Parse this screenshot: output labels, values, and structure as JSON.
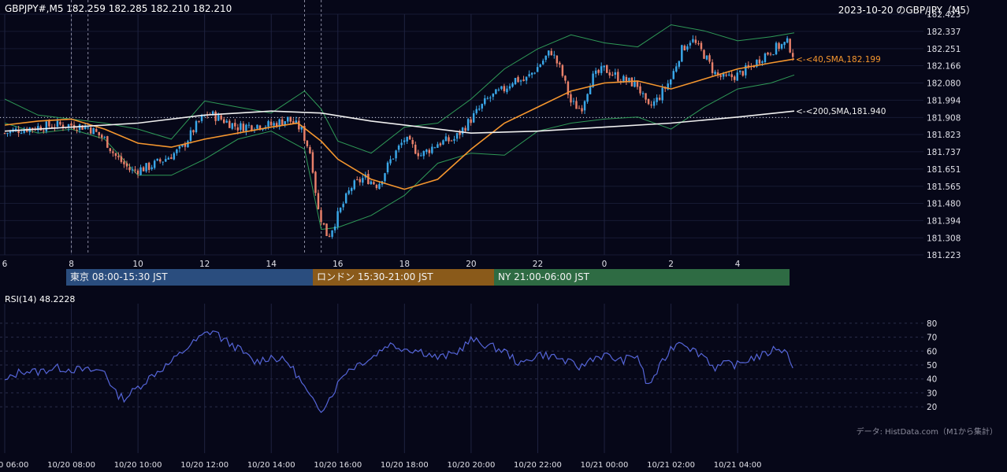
{
  "header": {
    "symbol_ohlc": "GBPJPY#,M5 182.259 182.285 182.210 182.210",
    "title": "2023-10-20 のGBP/JPY（M5）"
  },
  "sessions": [
    {
      "label": "東京 08:00-15:30 JST",
      "color": "#2a4d7e"
    },
    {
      "label": "ロンドン 15:30-21:00 JST",
      "color": "#8a5a1a"
    },
    {
      "label": "NY 21:00-06:00 JST",
      "color": "#2e6b43"
    }
  ],
  "rsi": {
    "label": "RSI(14) 48.2228"
  },
  "source": "データ: HistData.com（M1から集計）",
  "chart_data": [
    {
      "type": "candlestick",
      "title": "GBPJPY#,M5",
      "ylim": [
        181.223,
        182.423
      ],
      "y_ticks": [
        "182.423",
        "182.337",
        "182.251",
        "182.166",
        "182.080",
        "181.994",
        "181.908",
        "181.823",
        "181.737",
        "181.651",
        "181.565",
        "181.480",
        "181.394",
        "181.308",
        "181.223"
      ],
      "x_ticks": [
        "6",
        "8",
        "10",
        "12",
        "14",
        "16",
        "18",
        "20",
        "22",
        "0",
        "2",
        "4"
      ],
      "x_tick_hours": [
        6,
        8,
        10,
        12,
        14,
        16,
        18,
        20,
        22,
        24,
        26,
        28
      ],
      "x_range_hours": [
        6,
        29.7
      ],
      "reference_line_price": 181.908,
      "session_markers_hours": [
        8,
        8.5,
        15,
        15.5
      ],
      "colors": {
        "up": "#3aa7e8",
        "down": "#e8806a",
        "sma40": "#f5962e",
        "sma200": "#f0f0f0",
        "bands": "#2f9a57"
      },
      "series": [
        {
          "name": "SMA 40",
          "annotation": "<-<40,SMA,182.199",
          "points": [
            [
              6,
              181.87
            ],
            [
              7,
              181.89
            ],
            [
              8,
              181.9
            ],
            [
              9,
              181.85
            ],
            [
              10,
              181.78
            ],
            [
              11,
              181.76
            ],
            [
              12,
              181.8
            ],
            [
              13,
              181.83
            ],
            [
              14,
              181.86
            ],
            [
              14.8,
              181.88
            ],
            [
              15.5,
              181.79
            ],
            [
              16,
              181.7
            ],
            [
              17,
              181.6
            ],
            [
              18,
              181.55
            ],
            [
              19,
              181.6
            ],
            [
              20,
              181.75
            ],
            [
              21,
              181.88
            ],
            [
              22,
              181.96
            ],
            [
              23,
              182.04
            ],
            [
              24,
              182.08
            ],
            [
              25,
              182.09
            ],
            [
              26,
              182.05
            ],
            [
              27,
              182.1
            ],
            [
              28,
              182.15
            ],
            [
              29,
              182.18
            ],
            [
              29.7,
              182.199
            ]
          ]
        },
        {
          "name": "SMA 200",
          "annotation": "<-<200,SMA,181.940",
          "points": [
            [
              6,
              181.84
            ],
            [
              8,
              181.86
            ],
            [
              10,
              181.88
            ],
            [
              12,
              181.92
            ],
            [
              14,
              181.94
            ],
            [
              15.5,
              181.93
            ],
            [
              17,
              181.89
            ],
            [
              19,
              181.85
            ],
            [
              20,
              181.83
            ],
            [
              22,
              181.84
            ],
            [
              24,
              181.86
            ],
            [
              26,
              181.88
            ],
            [
              28,
              181.91
            ],
            [
              29.7,
              181.94
            ]
          ]
        },
        {
          "name": "Upper band",
          "points": [
            [
              6,
              182.0
            ],
            [
              7,
              181.92
            ],
            [
              8,
              181.9
            ],
            [
              9,
              181.88
            ],
            [
              10,
              181.85
            ],
            [
              11,
              181.8
            ],
            [
              12,
              181.99
            ],
            [
              13,
              181.96
            ],
            [
              14,
              181.93
            ],
            [
              15,
              182.04
            ],
            [
              15.5,
              181.95
            ],
            [
              16,
              181.79
            ],
            [
              17,
              181.73
            ],
            [
              18,
              181.86
            ],
            [
              19,
              181.88
            ],
            [
              20,
              182.0
            ],
            [
              21,
              182.15
            ],
            [
              22,
              182.25
            ],
            [
              23,
              182.32
            ],
            [
              24,
              182.28
            ],
            [
              25,
              182.26
            ],
            [
              26,
              182.37
            ],
            [
              27,
              182.34
            ],
            [
              28,
              182.29
            ],
            [
              29,
              182.31
            ],
            [
              29.7,
              182.33
            ]
          ]
        },
        {
          "name": "Lower band",
          "points": [
            [
              6,
              181.88
            ],
            [
              7,
              181.83
            ],
            [
              8,
              181.85
            ],
            [
              9,
              181.8
            ],
            [
              10,
              181.62
            ],
            [
              11,
              181.62
            ],
            [
              12,
              181.7
            ],
            [
              13,
              181.8
            ],
            [
              14,
              181.84
            ],
            [
              15,
              181.75
            ],
            [
              15.5,
              181.35
            ],
            [
              16,
              181.36
            ],
            [
              17,
              181.42
            ],
            [
              18,
              181.52
            ],
            [
              19,
              181.68
            ],
            [
              20,
              181.73
            ],
            [
              21,
              181.72
            ],
            [
              22,
              181.84
            ],
            [
              23,
              181.88
            ],
            [
              24,
              181.9
            ],
            [
              25,
              181.91
            ],
            [
              26,
              181.85
            ],
            [
              27,
              181.96
            ],
            [
              28,
              182.05
            ],
            [
              29,
              182.08
            ],
            [
              29.7,
              182.12
            ]
          ]
        }
      ],
      "close_path": [
        [
          6,
          181.83
        ],
        [
          6.5,
          181.85
        ],
        [
          7,
          181.86
        ],
        [
          7.5,
          181.87
        ],
        [
          8,
          181.87
        ],
        [
          8.5,
          181.86
        ],
        [
          9,
          181.8
        ],
        [
          9.3,
          181.72
        ],
        [
          9.8,
          181.64
        ],
        [
          10.3,
          181.66
        ],
        [
          10.8,
          181.7
        ],
        [
          11.3,
          181.75
        ],
        [
          11.8,
          181.88
        ],
        [
          12.1,
          181.93
        ],
        [
          12.5,
          181.9
        ],
        [
          13,
          181.86
        ],
        [
          13.5,
          181.87
        ],
        [
          14,
          181.87
        ],
        [
          14.5,
          181.9
        ],
        [
          14.9,
          181.85
        ],
        [
          15.2,
          181.72
        ],
        [
          15.4,
          181.45
        ],
        [
          15.7,
          181.31
        ],
        [
          16,
          181.42
        ],
        [
          16.4,
          181.56
        ],
        [
          16.8,
          181.61
        ],
        [
          17.2,
          181.57
        ],
        [
          17.6,
          181.7
        ],
        [
          18,
          181.8
        ],
        [
          18.5,
          181.72
        ],
        [
          19,
          181.78
        ],
        [
          19.5,
          181.8
        ],
        [
          20,
          181.9
        ],
        [
          20.5,
          182.0
        ],
        [
          21,
          182.05
        ],
        [
          21.3,
          182.1
        ],
        [
          21.6,
          182.09
        ],
        [
          22,
          182.16
        ],
        [
          22.4,
          182.24
        ],
        [
          22.7,
          182.14
        ],
        [
          23,
          181.98
        ],
        [
          23.3,
          181.95
        ],
        [
          23.6,
          182.1
        ],
        [
          24,
          182.15
        ],
        [
          24.5,
          182.1
        ],
        [
          25,
          182.07
        ],
        [
          25.3,
          181.95
        ],
        [
          25.6,
          182.0
        ],
        [
          26,
          182.1
        ],
        [
          26.3,
          182.24
        ],
        [
          26.6,
          182.3
        ],
        [
          27,
          182.22
        ],
        [
          27.3,
          182.13
        ],
        [
          27.6,
          182.1
        ],
        [
          28,
          182.12
        ],
        [
          28.4,
          182.16
        ],
        [
          28.8,
          182.22
        ],
        [
          29.2,
          182.26
        ],
        [
          29.5,
          182.28
        ],
        [
          29.7,
          182.21
        ]
      ]
    },
    {
      "type": "line",
      "title": "RSI(14)",
      "ylim": [
        15,
        85
      ],
      "y_ticks": [
        "80",
        "70",
        "60",
        "50",
        "40",
        "30",
        "20"
      ],
      "x_ticks": [
        "10/20 06:00",
        "10/20 08:00",
        "10/20 10:00",
        "10/20 12:00",
        "10/20 14:00",
        "10/20 16:00",
        "10/20 18:00",
        "10/20 20:00",
        "10/20 22:00",
        "10/21 00:00",
        "10/21 02:00",
        "10/21 04:00"
      ],
      "x_tick_hours": [
        6,
        8,
        10,
        12,
        14,
        16,
        18,
        20,
        22,
        24,
        26,
        28
      ],
      "color": "#5565d8",
      "series": [
        {
          "name": "RSI(14)",
          "points": [
            [
              6,
              38
            ],
            [
              6.5,
              46
            ],
            [
              7,
              45
            ],
            [
              7.5,
              48
            ],
            [
              8,
              47
            ],
            [
              8.5,
              46
            ],
            [
              9,
              46
            ],
            [
              9.3,
              30
            ],
            [
              9.6,
              26
            ],
            [
              10,
              34
            ],
            [
              10.5,
              44
            ],
            [
              11,
              52
            ],
            [
              11.5,
              63
            ],
            [
              12,
              72
            ],
            [
              12.3,
              75
            ],
            [
              12.5,
              69
            ],
            [
              13,
              62
            ],
            [
              13.5,
              52
            ],
            [
              14,
              56
            ],
            [
              14.5,
              52
            ],
            [
              14.8,
              42
            ],
            [
              15.2,
              25
            ],
            [
              15.5,
              18
            ],
            [
              15.8,
              28
            ],
            [
              16.2,
              45
            ],
            [
              16.7,
              52
            ],
            [
              17,
              55
            ],
            [
              17.5,
              65
            ],
            [
              18,
              62
            ],
            [
              18.5,
              60
            ],
            [
              19,
              55
            ],
            [
              19.5,
              58
            ],
            [
              20,
              68
            ],
            [
              20.5,
              64
            ],
            [
              21,
              60
            ],
            [
              21.5,
              50
            ],
            [
              22,
              58
            ],
            [
              22.5,
              56
            ],
            [
              23,
              51
            ],
            [
              23.3,
              48
            ],
            [
              23.6,
              55
            ],
            [
              24,
              57
            ],
            [
              24.5,
              53
            ],
            [
              25,
              57
            ],
            [
              25.3,
              34
            ],
            [
              25.7,
              50
            ],
            [
              26,
              62
            ],
            [
              26.3,
              68
            ],
            [
              26.7,
              60
            ],
            [
              27,
              57
            ],
            [
              27.3,
              48
            ],
            [
              27.7,
              51
            ],
            [
              28,
              50
            ],
            [
              28.4,
              55
            ],
            [
              28.8,
              57
            ],
            [
              29.2,
              63
            ],
            [
              29.5,
              58
            ],
            [
              29.7,
              48
            ]
          ]
        }
      ]
    }
  ]
}
